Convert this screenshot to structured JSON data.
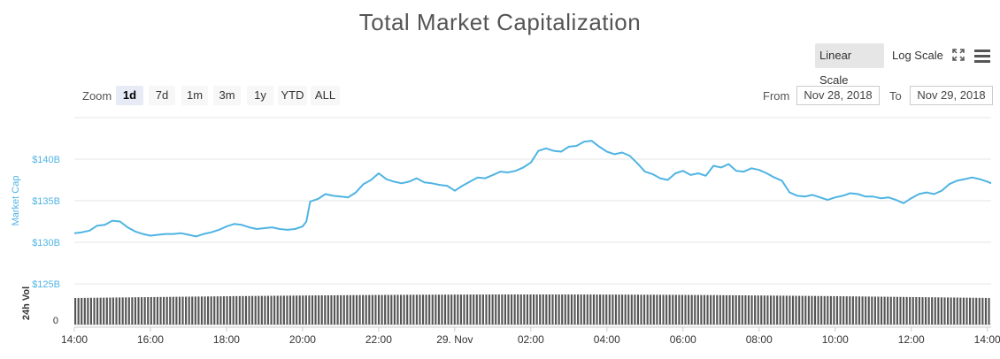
{
  "chart_data": {
    "type": "line",
    "title": "Total Market Capitalization",
    "ylabel": "Market Cap",
    "ylabel2": "24h Vol",
    "yticks": [
      "$140B",
      "$135B",
      "$130B",
      "$125B"
    ],
    "ytick_values": [
      140,
      135,
      130,
      125
    ],
    "ylim": [
      125,
      145
    ],
    "vol_ytick": "0",
    "xticks": [
      "14:00",
      "16:00",
      "18:00",
      "20:00",
      "22:00",
      "29. Nov",
      "02:00",
      "04:00",
      "06:00",
      "08:00",
      "10:00",
      "12:00",
      "14:00"
    ],
    "xtick_hours": [
      0,
      2,
      4,
      6,
      8,
      10,
      12,
      14,
      16,
      18,
      20,
      22,
      24
    ],
    "xlim_hours": [
      0,
      24.1
    ],
    "market_cap_points": [
      [
        0.0,
        131.1
      ],
      [
        0.2,
        131.2
      ],
      [
        0.4,
        131.4
      ],
      [
        0.6,
        132.0
      ],
      [
        0.8,
        132.1
      ],
      [
        1.0,
        132.6
      ],
      [
        1.2,
        132.5
      ],
      [
        1.4,
        131.8
      ],
      [
        1.6,
        131.3
      ],
      [
        1.8,
        131.0
      ],
      [
        2.0,
        130.8
      ],
      [
        2.2,
        130.9
      ],
      [
        2.4,
        131.0
      ],
      [
        2.6,
        131.0
      ],
      [
        2.8,
        131.1
      ],
      [
        3.0,
        130.9
      ],
      [
        3.2,
        130.7
      ],
      [
        3.4,
        131.0
      ],
      [
        3.6,
        131.2
      ],
      [
        3.8,
        131.5
      ],
      [
        4.0,
        131.9
      ],
      [
        4.2,
        132.2
      ],
      [
        4.4,
        132.1
      ],
      [
        4.6,
        131.8
      ],
      [
        4.8,
        131.6
      ],
      [
        5.0,
        131.7
      ],
      [
        5.2,
        131.8
      ],
      [
        5.4,
        131.6
      ],
      [
        5.6,
        131.5
      ],
      [
        5.8,
        131.6
      ],
      [
        6.0,
        131.9
      ],
      [
        6.1,
        132.5
      ],
      [
        6.2,
        134.9
      ],
      [
        6.4,
        135.2
      ],
      [
        6.6,
        135.8
      ],
      [
        6.8,
        135.6
      ],
      [
        7.0,
        135.5
      ],
      [
        7.2,
        135.4
      ],
      [
        7.4,
        136.0
      ],
      [
        7.6,
        137.0
      ],
      [
        7.8,
        137.5
      ],
      [
        8.0,
        138.3
      ],
      [
        8.2,
        137.6
      ],
      [
        8.4,
        137.3
      ],
      [
        8.6,
        137.1
      ],
      [
        8.8,
        137.3
      ],
      [
        9.0,
        137.7
      ],
      [
        9.2,
        137.2
      ],
      [
        9.4,
        137.1
      ],
      [
        9.6,
        136.9
      ],
      [
        9.8,
        136.8
      ],
      [
        10.0,
        136.2
      ],
      [
        10.2,
        136.8
      ],
      [
        10.4,
        137.3
      ],
      [
        10.6,
        137.8
      ],
      [
        10.8,
        137.7
      ],
      [
        11.0,
        138.1
      ],
      [
        11.2,
        138.5
      ],
      [
        11.4,
        138.4
      ],
      [
        11.6,
        138.6
      ],
      [
        11.8,
        139.0
      ],
      [
        12.0,
        139.6
      ],
      [
        12.2,
        141.0
      ],
      [
        12.4,
        141.3
      ],
      [
        12.6,
        141.0
      ],
      [
        12.8,
        140.9
      ],
      [
        13.0,
        141.5
      ],
      [
        13.2,
        141.6
      ],
      [
        13.4,
        142.1
      ],
      [
        13.6,
        142.2
      ],
      [
        13.8,
        141.5
      ],
      [
        14.0,
        140.9
      ],
      [
        14.2,
        140.6
      ],
      [
        14.4,
        140.8
      ],
      [
        14.6,
        140.4
      ],
      [
        14.8,
        139.5
      ],
      [
        15.0,
        138.5
      ],
      [
        15.2,
        138.2
      ],
      [
        15.4,
        137.7
      ],
      [
        15.6,
        137.5
      ],
      [
        15.8,
        138.3
      ],
      [
        16.0,
        138.6
      ],
      [
        16.2,
        138.1
      ],
      [
        16.4,
        138.3
      ],
      [
        16.6,
        138.0
      ],
      [
        16.8,
        139.2
      ],
      [
        17.0,
        139.0
      ],
      [
        17.2,
        139.4
      ],
      [
        17.4,
        138.6
      ],
      [
        17.6,
        138.5
      ],
      [
        17.8,
        138.9
      ],
      [
        18.0,
        138.7
      ],
      [
        18.2,
        138.3
      ],
      [
        18.4,
        137.8
      ],
      [
        18.6,
        137.4
      ],
      [
        18.8,
        136.0
      ],
      [
        19.0,
        135.6
      ],
      [
        19.2,
        135.5
      ],
      [
        19.4,
        135.7
      ],
      [
        19.6,
        135.4
      ],
      [
        19.8,
        135.1
      ],
      [
        20.0,
        135.4
      ],
      [
        20.2,
        135.6
      ],
      [
        20.4,
        135.9
      ],
      [
        20.6,
        135.8
      ],
      [
        20.8,
        135.5
      ],
      [
        21.0,
        135.5
      ],
      [
        21.2,
        135.3
      ],
      [
        21.4,
        135.4
      ],
      [
        21.6,
        135.1
      ],
      [
        21.8,
        134.7
      ],
      [
        22.0,
        135.3
      ],
      [
        22.2,
        135.8
      ],
      [
        22.4,
        136.0
      ],
      [
        22.6,
        135.8
      ],
      [
        22.8,
        136.2
      ],
      [
        23.0,
        137.0
      ],
      [
        23.2,
        137.4
      ],
      [
        23.4,
        137.6
      ],
      [
        23.6,
        137.8
      ],
      [
        23.8,
        137.6
      ],
      [
        24.0,
        137.3
      ],
      [
        24.1,
        137.1
      ]
    ]
  },
  "scale": {
    "linear": "Linear Scale",
    "log": "Log Scale"
  },
  "zoom": {
    "label": "Zoom",
    "buttons": [
      "1d",
      "7d",
      "1m",
      "3m",
      "1y",
      "YTD",
      "ALL"
    ],
    "active": "1d"
  },
  "range": {
    "from_label": "From",
    "from_value": "Nov 28, 2018",
    "to_label": "To",
    "to_value": "Nov 29, 2018"
  },
  "colors": {
    "line": "#4fb4e3",
    "axis_text": "#4fb4e3",
    "grid": "#e6e6e6",
    "volume": "#555555"
  }
}
